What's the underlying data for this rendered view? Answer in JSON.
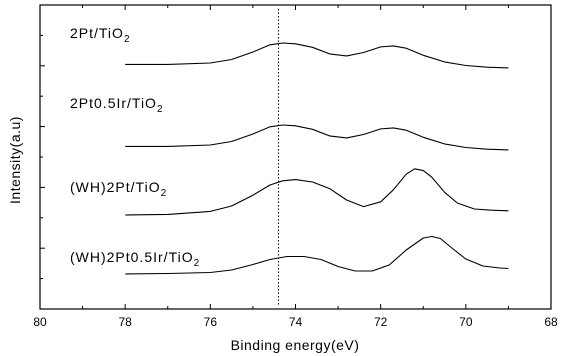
{
  "chart_data": {
    "type": "line",
    "title": "",
    "xlabel": "Binding energy(eV)",
    "ylabel": "Intensity(a.u)",
    "xlim": [
      80,
      68
    ],
    "x_reversed": true,
    "x_ticks": [
      80,
      78,
      76,
      74,
      72,
      70,
      68
    ],
    "y_ticklabels_shown": false,
    "grid": false,
    "reference_line": {
      "x": 74.4,
      "style": "dotted"
    },
    "series": [
      {
        "name_main": "2Pt/TiO",
        "name_sub": "2",
        "x": [
          78.0,
          77.0,
          76.0,
          75.5,
          75.0,
          74.6,
          74.3,
          74.0,
          73.6,
          73.2,
          72.8,
          72.4,
          72.0,
          71.7,
          71.4,
          71.0,
          70.5,
          70.0,
          69.5,
          69.0
        ],
        "y": [
          0.47,
          0.47,
          0.57,
          0.82,
          1.36,
          1.87,
          2.0,
          1.94,
          1.69,
          1.22,
          1.08,
          1.32,
          1.72,
          1.79,
          1.63,
          1.12,
          0.65,
          0.39,
          0.27,
          0.22
        ]
      },
      {
        "name_main": "2Pt0.5Ir/TiO",
        "name_sub": "2",
        "x": [
          78.0,
          77.0,
          76.0,
          75.5,
          75.0,
          74.6,
          74.3,
          74.0,
          73.6,
          73.2,
          72.8,
          72.4,
          72.0,
          71.7,
          71.4,
          71.0,
          70.5,
          70.0,
          69.5,
          69.0
        ],
        "y": [
          0.47,
          0.47,
          0.57,
          0.82,
          1.36,
          1.87,
          2.0,
          1.94,
          1.69,
          1.22,
          1.08,
          1.32,
          1.72,
          1.79,
          1.63,
          1.12,
          0.65,
          0.39,
          0.27,
          0.22
        ]
      },
      {
        "name_main": "(WH)2Pt/TiO",
        "name_sub": "2",
        "x": [
          78.0,
          77.0,
          76.0,
          75.5,
          75.0,
          74.6,
          74.3,
          74.0,
          73.6,
          73.2,
          72.8,
          72.4,
          72.0,
          71.7,
          71.4,
          71.2,
          71.0,
          70.8,
          70.5,
          70.2,
          69.8,
          69.4,
          69.0
        ],
        "y": [
          0.0,
          0.05,
          0.3,
          0.75,
          1.65,
          2.5,
          2.85,
          2.95,
          2.75,
          2.2,
          1.25,
          0.7,
          1.1,
          2.1,
          3.4,
          3.85,
          3.7,
          3.15,
          1.9,
          1.0,
          0.5,
          0.4,
          0.35
        ]
      },
      {
        "name_main": "(WH)2Pt0.5Ir/TiO",
        "name_sub": "2",
        "x": [
          78.0,
          77.0,
          76.0,
          75.5,
          75.0,
          74.6,
          74.2,
          73.8,
          73.4,
          73.0,
          72.6,
          72.2,
          71.8,
          71.4,
          71.0,
          70.8,
          70.6,
          70.3,
          70.0,
          69.6,
          69.2,
          69.0
        ],
        "y": [
          0.0,
          0.05,
          0.15,
          0.4,
          0.95,
          1.45,
          1.75,
          1.75,
          1.45,
          0.75,
          0.3,
          0.3,
          0.9,
          2.4,
          3.6,
          3.75,
          3.55,
          2.5,
          1.5,
          0.8,
          0.6,
          0.55
        ]
      }
    ]
  }
}
